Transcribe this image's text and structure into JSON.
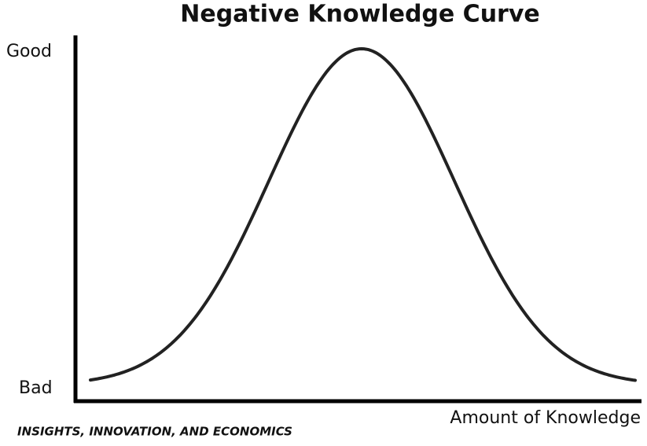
{
  "title": "Negative Knowledge Curve",
  "y_axis": {
    "top_label": "Good",
    "bottom_label": "Bad"
  },
  "x_axis": {
    "label": "Amount of Knowledge"
  },
  "footer": "INSIGHTS, INNOVATION, AND ECONOMICS"
}
